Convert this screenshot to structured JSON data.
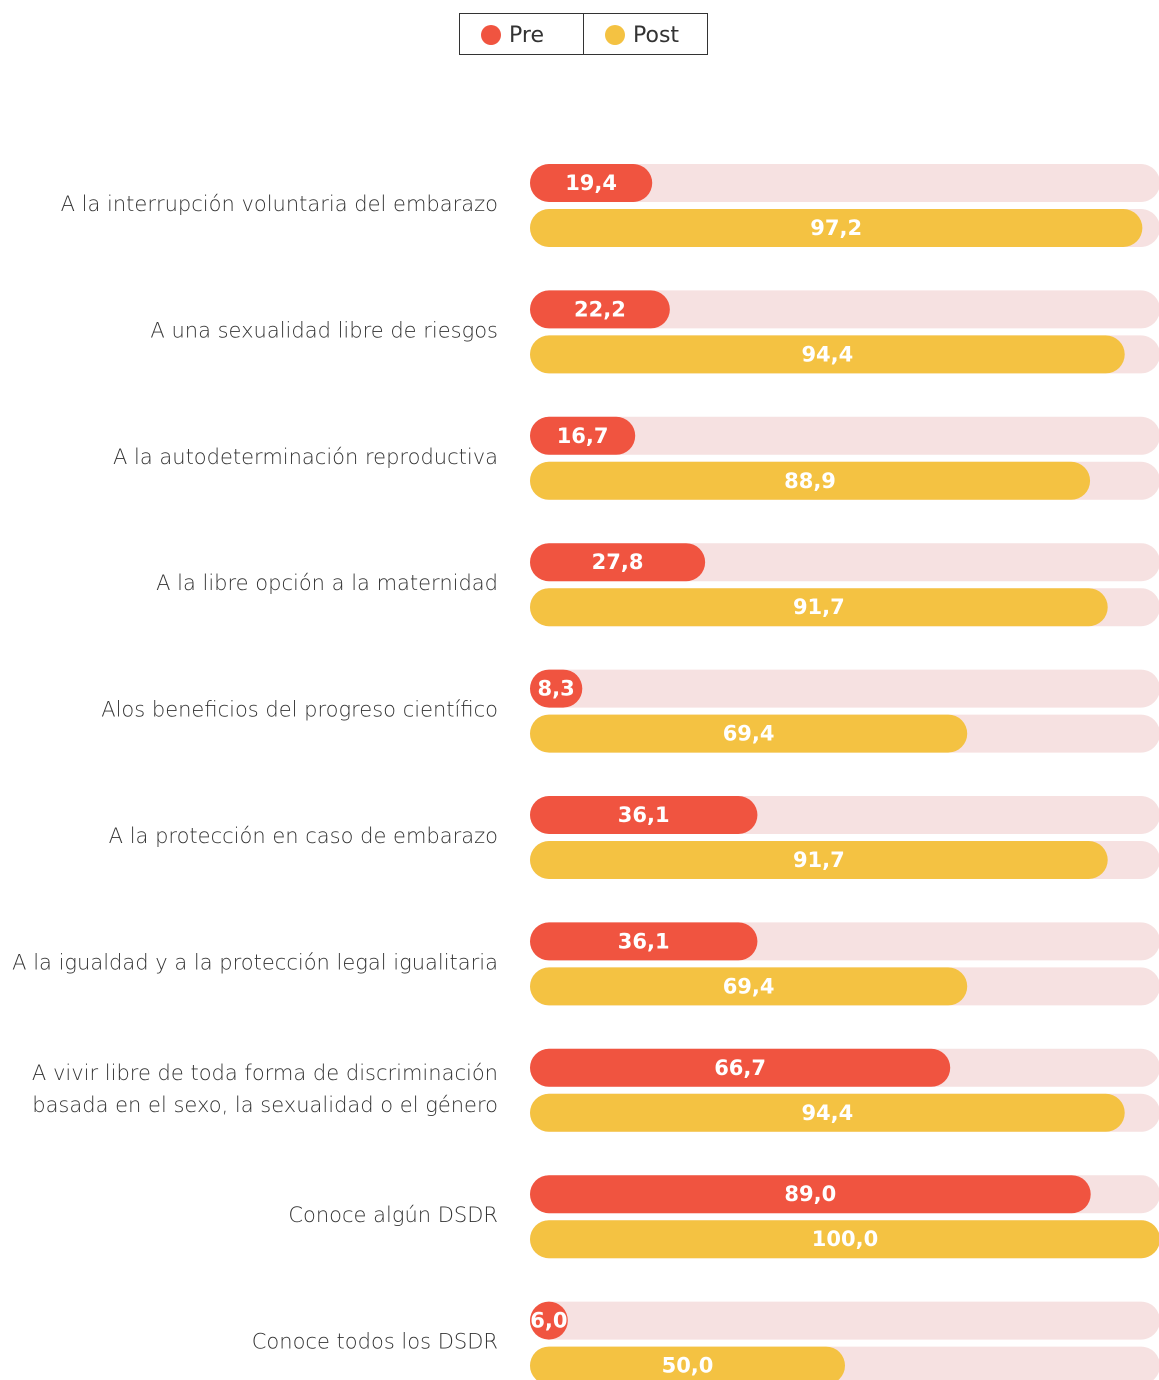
{
  "chart_data": {
    "type": "bar",
    "orientation": "horizontal",
    "categories": [
      "A la interrupción voluntaria del embarazo",
      "A una sexualidad libre de riesgos",
      "A la autodeterminación reproductiva",
      "A la libre opción a la maternidad",
      "Alos beneficios del progreso científico",
      "A la protección en caso de embarazo",
      "A la igualdad y a la protección legal igualitaria",
      "A vivir libre de toda forma de discriminación\nbasada en el sexo, la sexualidad o el género",
      "Conoce algún DSDR",
      "Conoce todos los DSDR"
    ],
    "series": [
      {
        "name": "Pre",
        "color": "#f05440",
        "values": [
          19.4,
          22.2,
          16.7,
          27.8,
          8.3,
          36.1,
          36.1,
          66.7,
          89.0,
          6.0
        ],
        "value_labels": [
          "19,4",
          "22,2",
          "16,7",
          "27,8",
          "8,3",
          "36,1",
          "36,1",
          "66,7",
          "89,0",
          "6,0"
        ]
      },
      {
        "name": "Post",
        "color": "#f4c242",
        "values": [
          97.2,
          94.4,
          88.9,
          91.7,
          69.4,
          91.7,
          69.4,
          94.4,
          100.0,
          50.0
        ],
        "value_labels": [
          "97,2",
          "94,4",
          "88,9",
          "91,7",
          "69,4",
          "91,7",
          "69,4",
          "94,4",
          "100,0",
          "50,0"
        ]
      }
    ],
    "xlim": [
      0,
      100
    ],
    "track_color": "#f6e1e1",
    "legend": "top"
  }
}
